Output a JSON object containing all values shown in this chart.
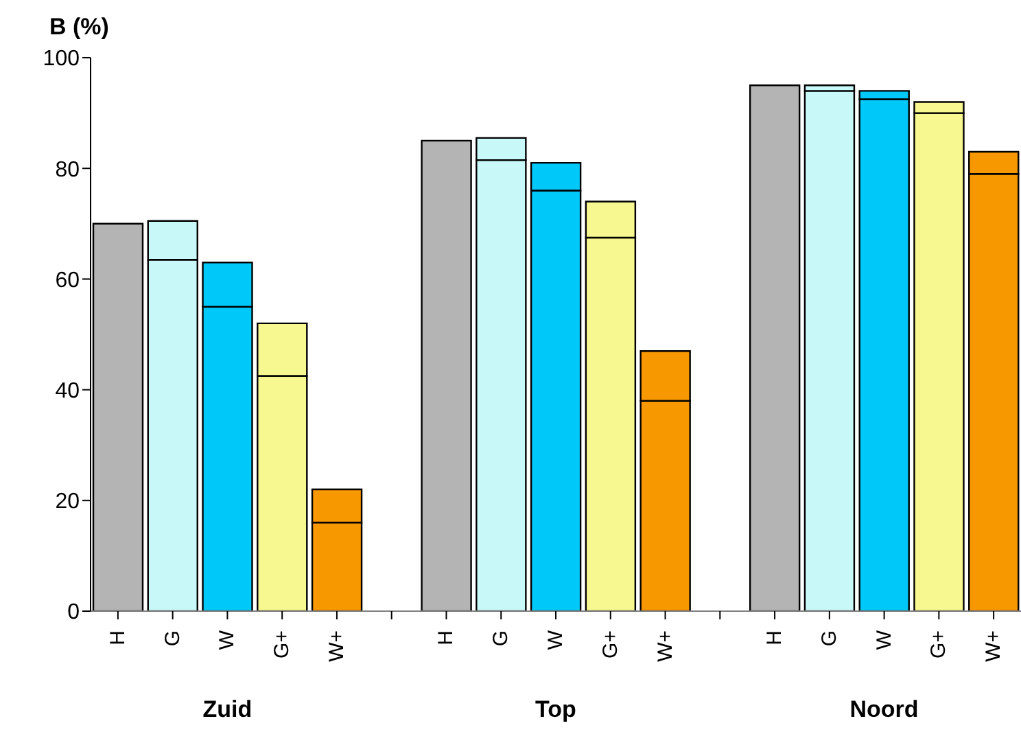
{
  "chart_data": {
    "type": "bar",
    "ylabel": "B (%)",
    "stacked": true,
    "categories": [
      "H",
      "G",
      "W",
      "G+",
      "W+",
      null,
      "H",
      "G",
      "W",
      "G+",
      "W+",
      null,
      "H",
      "G",
      "W",
      "G+",
      "W+"
    ],
    "series": [
      {
        "colors": [
          "#b4b4b4",
          "#c8f8f8",
          "#00c8f8",
          "#f8f890",
          "#f89800",
          "#ffffff",
          "#b4b4b4",
          "#c8f8f8",
          "#00c8f8",
          "#f8f890",
          "#f89800",
          "#ffffff",
          "#b4b4b4",
          "#c8f8f8",
          "#00c8f8",
          "#f8f890",
          "#f89800"
        ],
        "values": [
          70,
          63.5,
          55,
          42.5,
          16,
          null,
          85,
          81.5,
          76,
          67.5,
          38,
          null,
          95,
          94,
          92.5,
          90,
          79
        ]
      },
      {
        "colors": [
          "#b4b4b4",
          "#c8f8f8",
          "#00c8f8",
          "#f8f890",
          "#f89800",
          "#ffffff",
          "#b4b4b4",
          "#c8f8f8",
          "#00c8f8",
          "#f8f890",
          "#f89800",
          "#ffffff",
          "#b4b4b4",
          "#c8f8f8",
          "#00c8f8",
          "#f8f890",
          "#f89800"
        ],
        "values": [
          null,
          7,
          8,
          9.5,
          6,
          null,
          null,
          4,
          5,
          6.5,
          9,
          null,
          null,
          1,
          1.5,
          2,
          4
        ]
      }
    ],
    "annotations": [
      "Zuid",
      "Top",
      "Noord"
    ],
    "ylim": [
      0,
      100
    ],
    "yticks": [
      0,
      20,
      40,
      60,
      80,
      100
    ],
    "grid": false,
    "legend": false
  }
}
